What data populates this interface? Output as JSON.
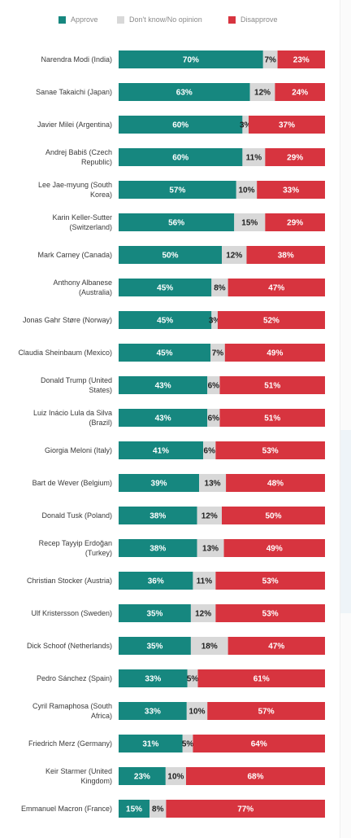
{
  "colors": {
    "approve": "#16877f",
    "neutral": "#d8d8d8",
    "disapprove": "#d7343f",
    "label_text": "#3a3a3a",
    "legend_text": "#8a8a8a"
  },
  "legend": {
    "items": [
      {
        "key": "approve",
        "label": "Approve"
      },
      {
        "key": "neutral",
        "label": "Don't know/No opinion"
      },
      {
        "key": "disapprove",
        "label": "Disapprove"
      }
    ]
  },
  "chart_data": {
    "type": "bar",
    "orientation": "horizontal",
    "stacked": true,
    "unit": "%",
    "categories": [
      "Narendra Modi (India)",
      "Sanae Takaichi (Japan)",
      "Javier Milei (Argentina)",
      "Andrej Babiš (Czech Republic)",
      "Lee Jae-myung (South Korea)",
      "Karin Keller-Sutter (Switzerland)",
      "Mark Carney (Canada)",
      "Anthony Albanese (Australia)",
      "Jonas Gahr Støre (Norway)",
      "Claudia Sheinbaum (Mexico)",
      "Donald Trump (United States)",
      "Luiz Inácio Lula da Silva (Brazil)",
      "Giorgia Meloni (Italy)",
      "Bart de Wever (Belgium)",
      "Donald Tusk (Poland)",
      "Recep Tayyip Erdoğan (Turkey)",
      "Christian Stocker (Austria)",
      "Ulf Kristersson (Sweden)",
      "Dick Schoof (Netherlands)",
      "Pedro Sánchez (Spain)",
      "Cyril Ramaphosa (South Africa)",
      "Friedrich Merz (Germany)",
      "Keir Starmer (United Kingdom)",
      "Emmanuel Macron (France)"
    ],
    "category_lines": [
      [
        "Narendra Modi (India)"
      ],
      [
        "Sanae Takaichi (Japan)"
      ],
      [
        "Javier Milei (Argentina)"
      ],
      [
        "Andrej Babiš (Czech",
        "Republic)"
      ],
      [
        "Lee Jae-myung (South",
        "Korea)"
      ],
      [
        "Karin Keller-Sutter",
        "(Switzerland)"
      ],
      [
        "Mark Carney (Canada)"
      ],
      [
        "Anthony Albanese",
        "(Australia)"
      ],
      [
        "Jonas Gahr Støre (Norway)"
      ],
      [
        "Claudia Sheinbaum (Mexico)"
      ],
      [
        "Donald Trump (United",
        "States)"
      ],
      [
        "Luiz Inácio Lula da Silva",
        "(Brazil)"
      ],
      [
        "Giorgia Meloni (Italy)"
      ],
      [
        "Bart de Wever (Belgium)"
      ],
      [
        "Donald Tusk (Poland)"
      ],
      [
        "Recep Tayyip Erdoğan",
        "(Turkey)"
      ],
      [
        "Christian Stocker (Austria)"
      ],
      [
        "Ulf Kristersson (Sweden)"
      ],
      [
        "Dick Schoof (Netherlands)"
      ],
      [
        "Pedro Sánchez (Spain)"
      ],
      [
        "Cyril Ramaphosa (South",
        "Africa)"
      ],
      [
        "Friedrich Merz (Germany)"
      ],
      [
        "Keir Starmer (United",
        "Kingdom)"
      ],
      [
        "Emmanuel Macron (France)"
      ]
    ],
    "series": [
      {
        "name": "Approve",
        "key": "approve",
        "values": [
          70,
          63,
          60,
          60,
          57,
          56,
          50,
          45,
          45,
          45,
          43,
          43,
          41,
          39,
          38,
          38,
          36,
          35,
          35,
          33,
          33,
          31,
          23,
          15
        ]
      },
      {
        "name": "Don't know/No opinion",
        "key": "neutral",
        "values": [
          7,
          12,
          3,
          11,
          10,
          15,
          12,
          8,
          3,
          7,
          6,
          6,
          6,
          13,
          12,
          13,
          11,
          12,
          18,
          5,
          10,
          5,
          10,
          8
        ]
      },
      {
        "name": "Disapprove",
        "key": "disapprove",
        "values": [
          23,
          24,
          37,
          29,
          33,
          29,
          38,
          47,
          52,
          49,
          51,
          51,
          53,
          48,
          50,
          49,
          53,
          53,
          47,
          61,
          57,
          64,
          68,
          77
        ]
      }
    ],
    "xlim": [
      0,
      100
    ],
    "legend_position": "top",
    "grid": false
  }
}
